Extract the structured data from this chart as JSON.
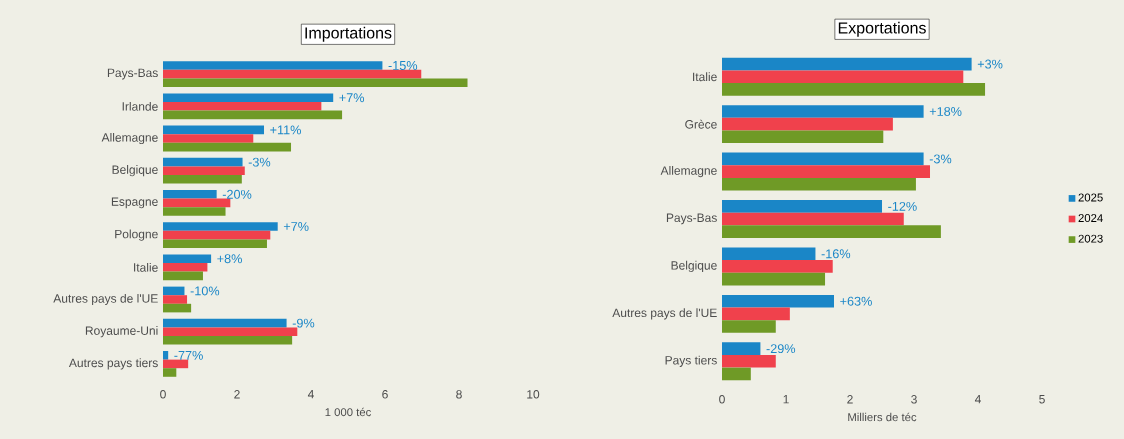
{
  "chart_data": [
    {
      "type": "bar",
      "orientation": "horizontal",
      "title": "Importations",
      "xlabel": "1 000 téc",
      "categories": [
        "Pays-Bas",
        "Irlande",
        "Allemagne",
        "Belgique",
        "Espagne",
        "Pologne",
        "Italie",
        "Autres pays de l'UE",
        "Royaume-Uni",
        "Autres pays tiers"
      ],
      "series": [
        {
          "color": "#1a86c7",
          "values": [
            5.93,
            4.6,
            2.73,
            2.15,
            1.45,
            3.1,
            1.3,
            0.58,
            3.34,
            0.14
          ]
        },
        {
          "color": "#f0414c",
          "values": [
            6.98,
            4.28,
            2.44,
            2.21,
            1.82,
            2.9,
            1.2,
            0.65,
            3.63,
            0.68
          ]
        },
        {
          "color": "#6f9a26",
          "values": [
            8.23,
            4.84,
            3.46,
            2.13,
            1.69,
            2.81,
            1.08,
            0.76,
            3.49,
            0.36
          ]
        }
      ],
      "annotations": [
        {
          "text": "-15%",
          "x": 5.93,
          "y": "Pays-Bas"
        },
        {
          "text": "+7%",
          "x": 4.6,
          "y": "Irlande"
        },
        {
          "text": "+11%",
          "x": 2.73,
          "y": "Allemagne"
        },
        {
          "text": "-3%",
          "x": 2.15,
          "y": "Belgique"
        },
        {
          "text": "-20%",
          "x": 1.45,
          "y": "Espagne"
        },
        {
          "text": "+7%",
          "x": 3.1,
          "y": "Pologne"
        },
        {
          "text": "+8%",
          "x": 1.3,
          "y": "Italie"
        },
        {
          "text": "-10%",
          "x": 0.58,
          "y": "Autres pays de l'UE"
        },
        {
          "text": "-9%",
          "x": 3.34,
          "y": "Royaume-Uni"
        },
        {
          "text": "-77%",
          "x": 0.14,
          "y": "Autres pays tiers"
        }
      ],
      "xlim": [
        0,
        10
      ],
      "xticks": [
        0,
        2,
        4,
        6,
        8,
        10
      ]
    },
    {
      "type": "bar",
      "orientation": "horizontal",
      "title": "Exportations",
      "xlabel": "Milliers de téc",
      "categories": [
        "Italie",
        "Grèce",
        "Allemagne",
        "Pays-Bas",
        "Belgique",
        "Autres pays de l'UE",
        "Pays tiers"
      ],
      "series": [
        {
          "name": "2025",
          "color": "#1a86c7",
          "values": [
            3.9,
            3.15,
            3.15,
            2.5,
            1.46,
            1.75,
            0.6
          ]
        },
        {
          "name": "2024",
          "color": "#f0414c",
          "values": [
            3.77,
            2.67,
            3.25,
            2.84,
            1.73,
            1.06,
            0.84
          ]
        },
        {
          "name": "2023",
          "color": "#6f9a26",
          "values": [
            4.11,
            2.52,
            3.03,
            3.42,
            1.61,
            0.84,
            0.45
          ]
        }
      ],
      "annotations": [
        "+3%",
        "+18%",
        "-3%",
        "-12%",
        "-16%",
        "+63%",
        "-29%"
      ],
      "xlim": [
        0,
        5
      ],
      "xticks": [
        0,
        1,
        2,
        3,
        4,
        5
      ],
      "legend": "right"
    }
  ]
}
